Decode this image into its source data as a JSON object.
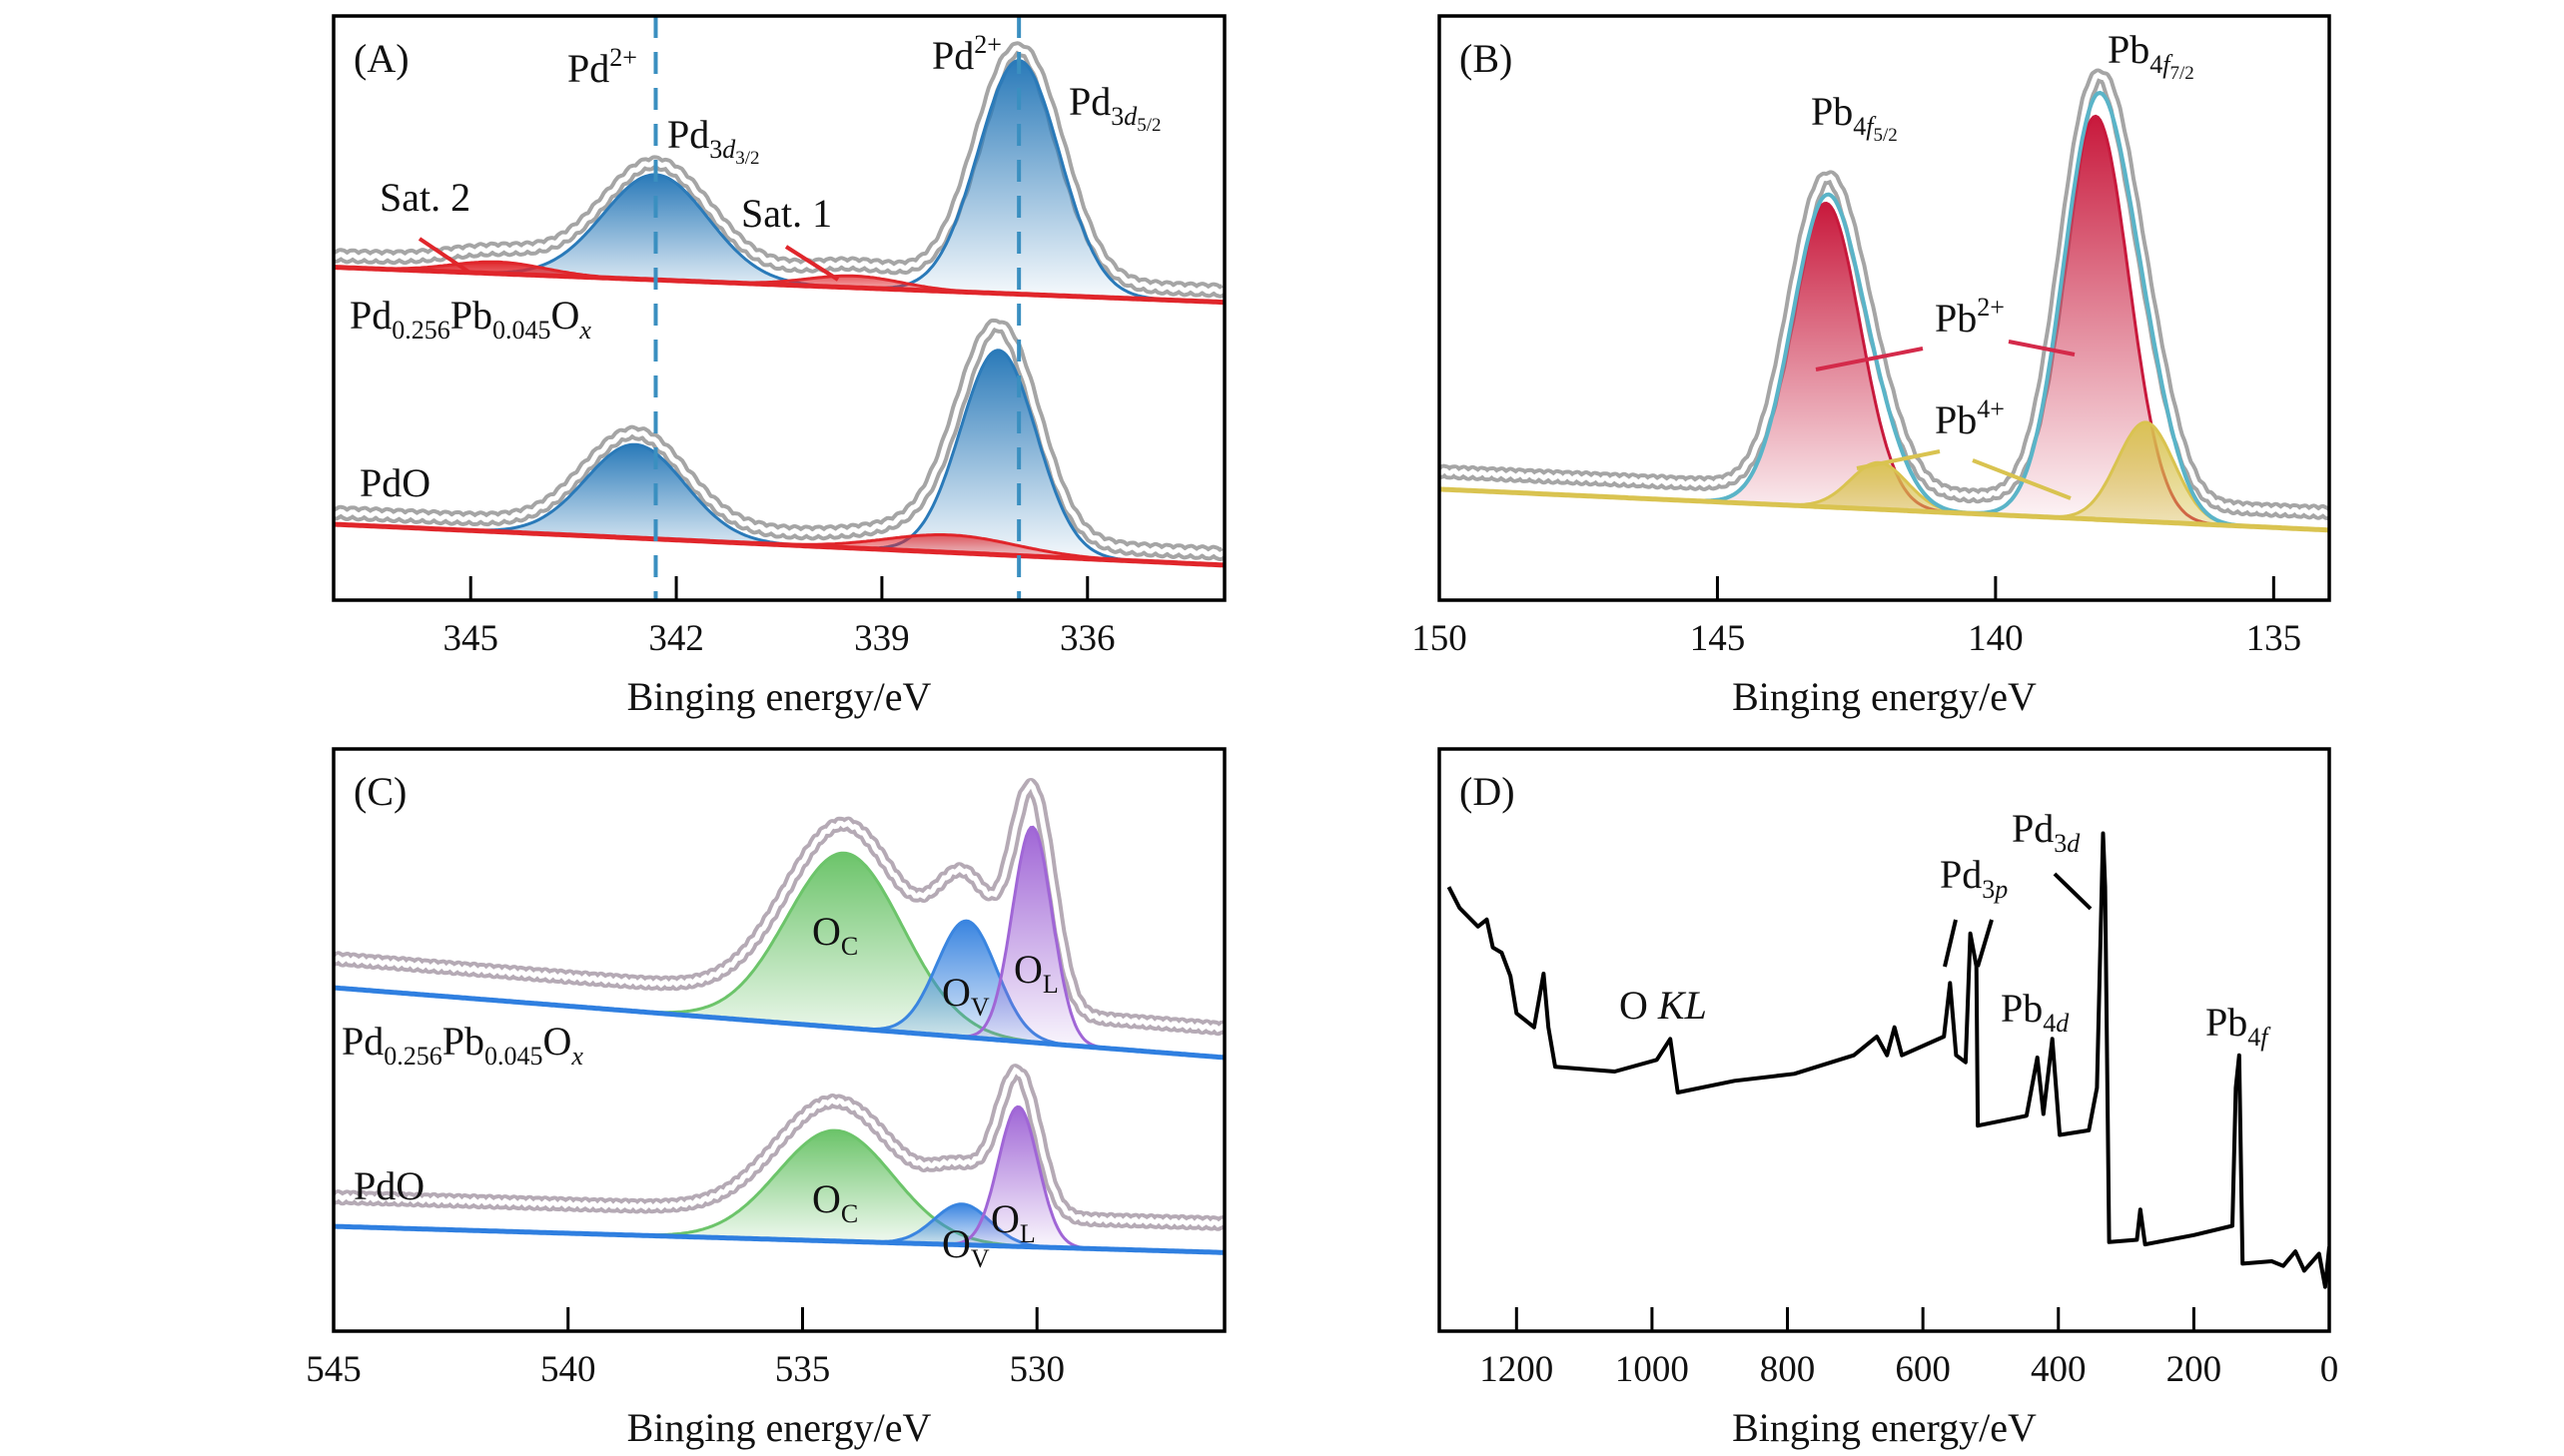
{
  "chart_data": [
    {
      "panel_label": "(A)",
      "type": "line",
      "xlabel": "Binging energy/eV",
      "xlim": [
        347,
        334
      ],
      "xticks": [
        345,
        342,
        339,
        336
      ],
      "ylim": [
        0,
        100
      ],
      "grid": false,
      "fill_color": "#2a7ab9",
      "baseline_color": "#e0262b",
      "data_color": "#a5a5a5",
      "dashed_lines": [
        342.3,
        337.0
      ],
      "dashed_color": "#3a8fc0",
      "spectra": [
        {
          "baseline": [
            57,
            51
          ],
          "data_offset": 2,
          "peaks": [
            {
              "center": 342.3,
              "fwhm": 1.8,
              "height": 18,
              "color": "#2a7ab9"
            },
            {
              "center": 337.0,
              "fwhm": 1.4,
              "height": 40,
              "color": "#2a7ab9"
            },
            {
              "center": 339.4,
              "fwhm": 1.6,
              "height": 2,
              "color": "#e0262b"
            },
            {
              "center": 344.6,
              "fwhm": 1.6,
              "height": 2,
              "color": "#e0262b"
            }
          ]
        },
        {
          "baseline": [
            13,
            6
          ],
          "data_offset": 2,
          "peaks": [
            {
              "center": 342.6,
              "fwhm": 1.7,
              "height": 16,
              "color": "#2a7ab9"
            },
            {
              "center": 337.3,
              "fwhm": 1.3,
              "height": 35,
              "color": "#2a7ab9"
            },
            {
              "center": 338.0,
              "fwhm": 2.2,
              "height": 3,
              "color": "#e0262b"
            }
          ]
        }
      ],
      "annotations": [
        {
          "id": "pd2-left",
          "parts": [
            {
              "t": "Pd",
              "s": "n"
            },
            {
              "t": "2+",
              "s": "sup"
            }
          ]
        },
        {
          "id": "pd2-right",
          "parts": [
            {
              "t": "Pd",
              "s": "n"
            },
            {
              "t": "2+",
              "s": "sup"
            }
          ]
        },
        {
          "id": "pd3d32",
          "parts": [
            {
              "t": "Pd",
              "s": "n"
            },
            {
              "t": "3",
              "s": "sub"
            },
            {
              "t": "d",
              "s": "subi"
            },
            {
              "t": "3/2",
              "s": "ss"
            }
          ]
        },
        {
          "id": "pd3d52",
          "parts": [
            {
              "t": "Pd",
              "s": "n"
            },
            {
              "t": "3",
              "s": "sub"
            },
            {
              "t": "d",
              "s": "subi"
            },
            {
              "t": "5/2",
              "s": "ss"
            }
          ]
        },
        {
          "id": "sat2",
          "parts": [
            {
              "t": "Sat. 2",
              "s": "n"
            }
          ]
        },
        {
          "id": "sat1",
          "parts": [
            {
              "t": "Sat. 1",
              "s": "n"
            }
          ]
        },
        {
          "id": "sampleA1",
          "parts": [
            {
              "t": "Pd",
              "s": "n"
            },
            {
              "t": "0.256",
              "s": "sub"
            },
            {
              "t": "Pb",
              "s": "n2"
            },
            {
              "t": "0.045",
              "s": "sub"
            },
            {
              "t": "O",
              "s": "n2"
            },
            {
              "t": "x",
              "s": "subi"
            }
          ]
        },
        {
          "id": "sampleA2",
          "parts": [
            {
              "t": "PdO",
              "s": "n"
            }
          ]
        }
      ]
    },
    {
      "panel_label": "(B)",
      "type": "line",
      "xlabel": "Binging energy/eV",
      "xlim": [
        150,
        134
      ],
      "xticks": [
        150,
        145,
        140,
        135
      ],
      "ylim": [
        0,
        100
      ],
      "grid": false,
      "baseline_color": "#d9c350",
      "data_color": "#a5a5a5",
      "envelope_color": "#5ab4c8",
      "spectra": [
        {
          "baseline": [
            19,
            12
          ],
          "data_offset": 3,
          "peaks": [
            {
              "center": 143.05,
              "fwhm": 1.45,
              "height": 52,
              "color": "#c8193c"
            },
            {
              "center": 138.2,
              "fwhm": 1.4,
              "height": 69,
              "color": "#c8193c"
            },
            {
              "center": 142.1,
              "fwhm": 1.2,
              "height": 8,
              "color": "#d9c350"
            },
            {
              "center": 137.3,
              "fwhm": 1.2,
              "height": 17,
              "color": "#d9c350"
            }
          ]
        }
      ],
      "annotations": [
        {
          "id": "pb4f52",
          "parts": [
            {
              "t": "Pb",
              "s": "n"
            },
            {
              "t": "4",
              "s": "sub"
            },
            {
              "t": "f",
              "s": "subi"
            },
            {
              "t": "5/2",
              "s": "ss"
            }
          ]
        },
        {
          "id": "pb4f72",
          "parts": [
            {
              "t": "Pb",
              "s": "n"
            },
            {
              "t": "4",
              "s": "sub"
            },
            {
              "t": "f",
              "s": "subi"
            },
            {
              "t": "7/2",
              "s": "ss"
            }
          ]
        },
        {
          "id": "pb2",
          "parts": [
            {
              "t": "Pb",
              "s": "n"
            },
            {
              "t": "2+",
              "s": "sup"
            }
          ]
        },
        {
          "id": "pb4",
          "parts": [
            {
              "t": "Pb",
              "s": "n"
            },
            {
              "t": "4+",
              "s": "sup"
            }
          ]
        }
      ]
    },
    {
      "panel_label": "(C)",
      "type": "line",
      "xlabel": "Binging energy/eV",
      "xlim": [
        545,
        526
      ],
      "xticks": [
        545,
        540,
        535,
        530
      ],
      "ylim": [
        0,
        100
      ],
      "grid": false,
      "baseline_color": "#2f7fe0",
      "data_color": "#b5aab5",
      "spectra": [
        {
          "baseline": [
            59,
            47
          ],
          "data_offset": 5,
          "peaks": [
            {
              "center": 534.1,
              "fwhm": 2.9,
              "height": 30,
              "color": "#6cc46a"
            },
            {
              "center": 531.5,
              "fwhm": 1.5,
              "height": 20,
              "color": "#3a85e0"
            },
            {
              "center": 530.1,
              "fwhm": 1.0,
              "height": 37,
              "color": "#a066d6"
            }
          ]
        },
        {
          "baseline": [
            18,
            13.5
          ],
          "data_offset": 5,
          "peaks": [
            {
              "center": 534.3,
              "fwhm": 2.9,
              "height": 19,
              "color": "#6cc46a"
            },
            {
              "center": 531.6,
              "fwhm": 1.4,
              "height": 7,
              "color": "#3a85e0"
            },
            {
              "center": 530.4,
              "fwhm": 1.0,
              "height": 24,
              "color": "#a066d6"
            }
          ]
        }
      ],
      "annotations": [
        {
          "id": "oc1",
          "parts": [
            {
              "t": "O",
              "s": "n"
            },
            {
              "t": "C",
              "s": "sub"
            }
          ]
        },
        {
          "id": "ov1",
          "parts": [
            {
              "t": "O",
              "s": "n"
            },
            {
              "t": "V",
              "s": "sub"
            }
          ]
        },
        {
          "id": "ol1",
          "parts": [
            {
              "t": "O",
              "s": "n"
            },
            {
              "t": "L",
              "s": "sub"
            }
          ]
        },
        {
          "id": "oc2",
          "parts": [
            {
              "t": "O",
              "s": "n"
            },
            {
              "t": "C",
              "s": "sub"
            }
          ]
        },
        {
          "id": "ov2",
          "parts": [
            {
              "t": "O",
              "s": "n"
            },
            {
              "t": "V",
              "s": "sub"
            }
          ]
        },
        {
          "id": "ol2",
          "parts": [
            {
              "t": "O",
              "s": "n"
            },
            {
              "t": "L",
              "s": "sub"
            }
          ]
        },
        {
          "id": "sampleC1",
          "parts": [
            {
              "t": "Pd",
              "s": "n"
            },
            {
              "t": "0.256",
              "s": "sub"
            },
            {
              "t": "Pb",
              "s": "n2"
            },
            {
              "t": "0.045",
              "s": "sub"
            },
            {
              "t": "O",
              "s": "n2"
            },
            {
              "t": "x",
              "s": "subi"
            }
          ]
        },
        {
          "id": "sampleC2",
          "parts": [
            {
              "t": "PdO",
              "s": "n"
            }
          ]
        }
      ]
    },
    {
      "panel_label": "(D)",
      "type": "line",
      "xlabel": "Binging energy/eV",
      "xlim": [
        1314,
        0
      ],
      "xticks": [
        1200,
        1000,
        800,
        600,
        400,
        200,
        0
      ],
      "ylim": [
        0,
        100
      ],
      "grid": false,
      "line_color": "#000000",
      "x": [
        1300,
        1284,
        1257,
        1244,
        1235,
        1222,
        1209,
        1200,
        1174,
        1160,
        1153,
        1143,
        1055,
        993,
        973,
        962,
        878,
        790,
        702,
        668,
        653,
        642,
        631,
        569,
        560,
        551,
        537,
        530,
        521,
        519,
        447,
        431,
        422,
        409,
        398,
        355,
        343,
        334,
        331,
        325,
        284,
        279,
        272,
        200,
        143,
        138,
        133,
        128,
        85,
        68,
        50,
        37,
        15,
        6,
        0
      ],
      "y": [
        76.3,
        72.7,
        69.5,
        70.7,
        65.9,
        65,
        61,
        54.6,
        52.2,
        61.4,
        52.2,
        45.4,
        44.6,
        46.6,
        50.2,
        41,
        43,
        44.2,
        47.4,
        50.6,
        47.4,
        52.2,
        47.4,
        50.6,
        59.8,
        47.4,
        46.2,
        68.3,
        62.7,
        35.3,
        37,
        47,
        37.3,
        50.2,
        33.7,
        34.5,
        41.8,
        85.5,
        76.3,
        15.3,
        15.7,
        20.9,
        14.9,
        16.5,
        18.1,
        41.8,
        47.4,
        11.6,
        12,
        11.2,
        13.7,
        10.4,
        13.3,
        7.6,
        14.5
      ],
      "annotations": [
        {
          "id": "okl",
          "parts": [
            {
              "t": "O ",
              "s": "n"
            },
            {
              "t": "KL",
              "s": "i"
            }
          ]
        },
        {
          "id": "pd3p",
          "parts": [
            {
              "t": "Pd",
              "s": "n"
            },
            {
              "t": "3",
              "s": "sub"
            },
            {
              "t": "p",
              "s": "subi"
            }
          ]
        },
        {
          "id": "pd3d",
          "parts": [
            {
              "t": "Pd",
              "s": "n"
            },
            {
              "t": "3",
              "s": "sub"
            },
            {
              "t": "d",
              "s": "subi"
            }
          ]
        },
        {
          "id": "pb4d",
          "parts": [
            {
              "t": "Pb",
              "s": "n"
            },
            {
              "t": "4",
              "s": "sub"
            },
            {
              "t": "d",
              "s": "subi"
            }
          ]
        },
        {
          "id": "pb4f",
          "parts": [
            {
              "t": "Pb",
              "s": "n"
            },
            {
              "t": "4",
              "s": "sub"
            },
            {
              "t": "f",
              "s": "subi"
            }
          ]
        }
      ]
    }
  ]
}
